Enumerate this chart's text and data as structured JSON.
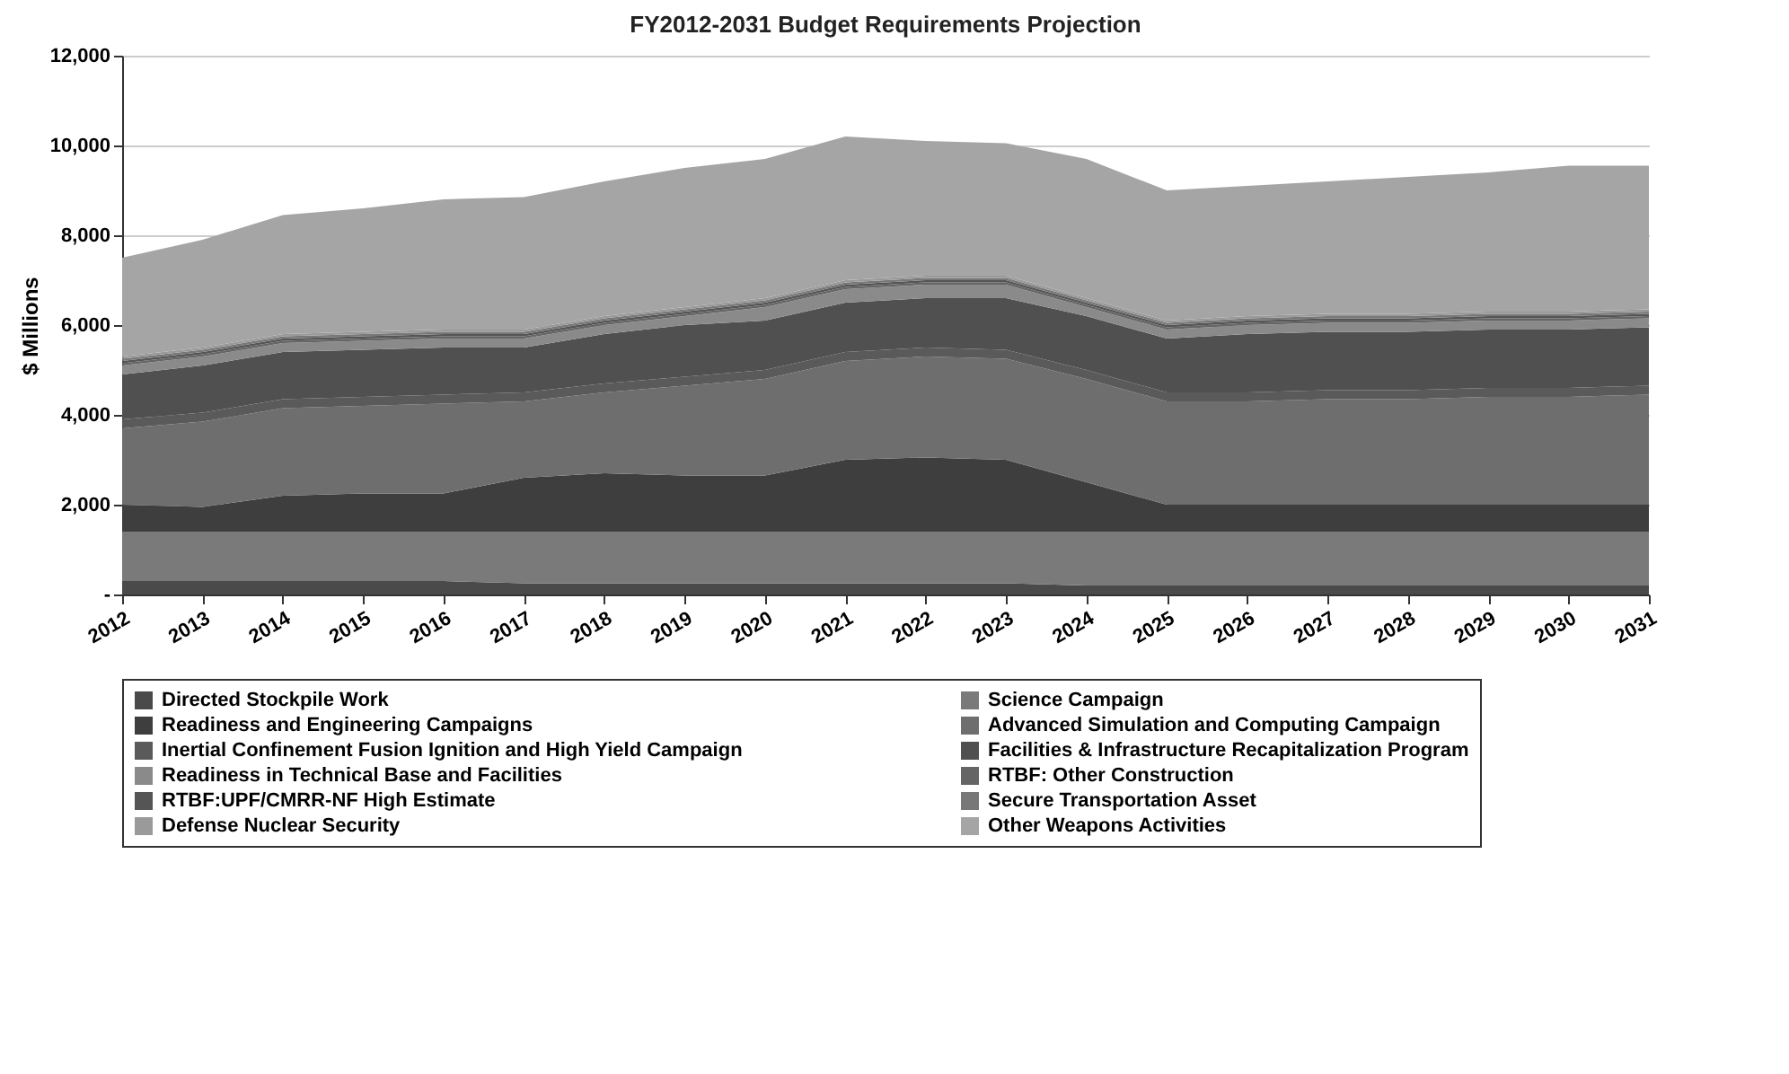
{
  "chart_data": {
    "type": "area",
    "stacked": true,
    "title": "FY2012-2031 Budget Requirements Projection",
    "ylabel": "$ Millions",
    "categories": [
      "2012",
      "2013",
      "2014",
      "2015",
      "2016",
      "2017",
      "2018",
      "2019",
      "2020",
      "2021",
      "2022",
      "2023",
      "2024",
      "2025",
      "2026",
      "2027",
      "2028",
      "2029",
      "2030",
      "2031"
    ],
    "ylim": [
      0,
      12000
    ],
    "yticks": [
      {
        "value": 0,
        "label": "-"
      },
      {
        "value": 2000,
        "label": "2,000"
      },
      {
        "value": 4000,
        "label": "4,000"
      },
      {
        "value": 6000,
        "label": "6,000"
      },
      {
        "value": 8000,
        "label": "8,000"
      },
      {
        "value": 10000,
        "label": "10,000"
      },
      {
        "value": 12000,
        "label": "12,000"
      }
    ],
    "grid": "y",
    "legend": "bottom",
    "series": [
      {
        "name": "Directed Stockpile Work",
        "color": "#4a4a4a",
        "values": [
          300,
          300,
          300,
          300,
          300,
          250,
          250,
          250,
          250,
          250,
          250,
          250,
          200,
          200,
          200,
          200,
          200,
          200,
          200,
          200
        ]
      },
      {
        "name": "Science Campaign",
        "color": "#7a7a7a",
        "values": [
          1100,
          1100,
          1100,
          1100,
          1100,
          1150,
          1150,
          1150,
          1150,
          1150,
          1150,
          1150,
          1200,
          1200,
          1200,
          1200,
          1200,
          1200,
          1200,
          1200
        ]
      },
      {
        "name": "Readiness and Engineering Campaigns",
        "color": "#3e3e3e",
        "values": [
          600,
          550,
          800,
          850,
          850,
          1200,
          1300,
          1250,
          1250,
          1600,
          1650,
          1600,
          1100,
          600,
          600,
          600,
          600,
          600,
          600,
          600
        ]
      },
      {
        "name": "Advanced Simulation and Computing Campaign",
        "color": "#6e6e6e",
        "values": [
          1700,
          1900,
          1950,
          1950,
          2000,
          1700,
          1800,
          2000,
          2150,
          2200,
          2250,
          2250,
          2300,
          2300,
          2300,
          2350,
          2350,
          2400,
          2400,
          2450
        ]
      },
      {
        "name": "Inertial Confinement Fusion Ignition and High Yield Campaign",
        "color": "#5a5a5a",
        "values": [
          200,
          200,
          200,
          200,
          200,
          200,
          200,
          200,
          200,
          200,
          200,
          200,
          200,
          200,
          200,
          200,
          200,
          200,
          200,
          200
        ]
      },
      {
        "name": "Facilities & Infrastructure Recapitalization Program",
        "color": "#505050",
        "values": [
          1000,
          1050,
          1050,
          1050,
          1050,
          1000,
          1100,
          1150,
          1100,
          1100,
          1100,
          1150,
          1200,
          1200,
          1300,
          1300,
          1300,
          1300,
          1300,
          1300
        ]
      },
      {
        "name": "Readiness in Technical Base and Facilities",
        "color": "#8a8a8a",
        "values": [
          200,
          200,
          200,
          200,
          200,
          200,
          200,
          200,
          300,
          300,
          300,
          300,
          200,
          200,
          200,
          200,
          200,
          200,
          200,
          200
        ]
      },
      {
        "name": "RTBF: Other Construction",
        "color": "#656565",
        "values": [
          50,
          50,
          50,
          50,
          50,
          50,
          50,
          50,
          50,
          50,
          50,
          50,
          50,
          50,
          50,
          50,
          50,
          50,
          50,
          50
        ]
      },
      {
        "name": "RTBF:UPF/CMRR-NF High Estimate",
        "color": "#555555",
        "values": [
          50,
          50,
          50,
          50,
          50,
          50,
          50,
          50,
          50,
          50,
          50,
          50,
          50,
          50,
          50,
          50,
          50,
          50,
          50,
          50
        ]
      },
      {
        "name": "Secure Transportation  Asset",
        "color": "#787878",
        "values": [
          50,
          50,
          50,
          50,
          50,
          50,
          50,
          50,
          50,
          50,
          50,
          50,
          50,
          50,
          50,
          50,
          50,
          50,
          50,
          50
        ]
      },
      {
        "name": "Defense Nuclear Security",
        "color": "#9a9a9a",
        "values": [
          50,
          50,
          50,
          50,
          50,
          50,
          50,
          50,
          50,
          50,
          50,
          50,
          50,
          50,
          50,
          50,
          50,
          50,
          50,
          50
        ]
      },
      {
        "name": "Other Weapons Activities",
        "color": "#a5a5a5",
        "values": [
          2200,
          2400,
          2650,
          2750,
          2900,
          2950,
          3000,
          3100,
          3100,
          3200,
          3000,
          2950,
          3100,
          2900,
          2900,
          2950,
          3050,
          3100,
          3250,
          3200
        ]
      }
    ]
  }
}
